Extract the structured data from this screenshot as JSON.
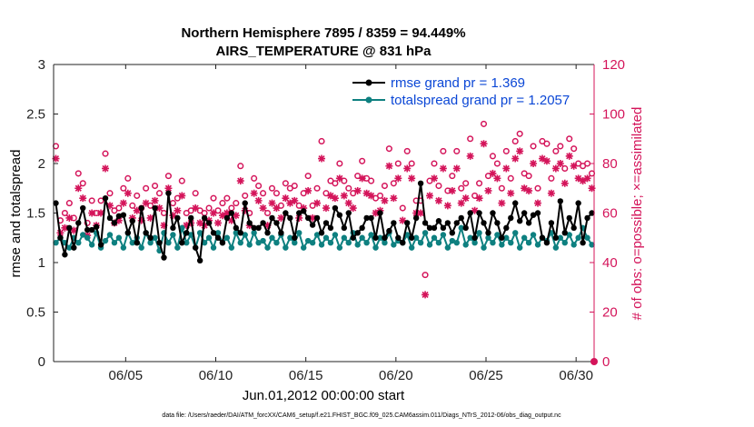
{
  "chart_data": {
    "type": "line",
    "title": "Northern Hemisphere 7895 / 8359 = 94.449%",
    "subtitle": "AIRS_TEMPERATURE @ 831 hPa",
    "xlabel": "Jun.01,2012 00:00:00 start",
    "ylabel_left": "rmse and totalspread",
    "ylabel_right": "# of obs: o=possible; ×=assimilated",
    "xlim": [
      1,
      31
    ],
    "ylim_left": [
      0,
      3
    ],
    "ylim_right": [
      0,
      120
    ],
    "x_tick_values": [
      5,
      10,
      15,
      20,
      25,
      30
    ],
    "x_tick_labels": [
      "06/05",
      "06/10",
      "06/15",
      "06/20",
      "06/25",
      "06/30"
    ],
    "y_left_ticks": [
      "0",
      "0.5",
      "1",
      "1.5",
      "2",
      "2.5",
      "3"
    ],
    "y_right_ticks": [
      "0",
      "20",
      "40",
      "60",
      "80",
      "100",
      "120"
    ],
    "legend": {
      "location": "top-right",
      "entries": [
        "rmse grand pr = 1.369",
        "totalspread grand pr = 1.2057"
      ]
    },
    "colors": {
      "rmse": "#000000",
      "spread": "#0e8080",
      "obs": "#d4145a",
      "axis_right": "#d4145a",
      "legend_text": "#0b47d6"
    },
    "x": [
      1.125,
      1.375,
      1.625,
      1.875,
      2.125,
      2.375,
      2.625,
      2.875,
      3.125,
      3.375,
      3.625,
      3.875,
      4.125,
      4.375,
      4.625,
      4.875,
      5.125,
      5.375,
      5.625,
      5.875,
      6.125,
      6.375,
      6.625,
      6.875,
      7.125,
      7.375,
      7.625,
      7.875,
      8.125,
      8.375,
      8.625,
      8.875,
      9.125,
      9.375,
      9.625,
      9.875,
      10.125,
      10.375,
      10.625,
      10.875,
      11.125,
      11.375,
      11.625,
      11.875,
      12.125,
      12.375,
      12.625,
      12.875,
      13.125,
      13.375,
      13.625,
      13.875,
      14.125,
      14.375,
      14.625,
      14.875,
      15.125,
      15.375,
      15.625,
      15.875,
      16.125,
      16.375,
      16.625,
      16.875,
      17.125,
      17.375,
      17.625,
      17.875,
      18.125,
      18.375,
      18.625,
      18.875,
      19.125,
      19.375,
      19.625,
      19.875,
      20.125,
      20.375,
      20.625,
      20.875,
      21.125,
      21.375,
      21.625,
      21.875,
      22.125,
      22.375,
      22.625,
      22.875,
      23.125,
      23.375,
      23.625,
      23.875,
      24.125,
      24.375,
      24.625,
      24.875,
      25.125,
      25.375,
      25.625,
      25.875,
      26.125,
      26.375,
      26.625,
      26.875,
      27.125,
      27.375,
      27.625,
      27.875,
      28.125,
      28.375,
      28.625,
      28.875,
      29.125,
      29.375,
      29.625,
      29.875,
      30.125,
      30.375,
      30.625,
      30.875
    ],
    "series": [
      {
        "name": "rmse",
        "axis": "left",
        "values": [
          1.6,
          1.25,
          1.08,
          1.35,
          1.15,
          1.4,
          1.55,
          1.33,
          1.33,
          1.36,
          1.18,
          1.65,
          1.45,
          1.4,
          1.47,
          1.48,
          1.3,
          1.42,
          1.2,
          1.55,
          1.3,
          1.25,
          1.55,
          1.2,
          1.05,
          1.7,
          1.35,
          1.45,
          1.2,
          1.3,
          1.45,
          1.15,
          1.02,
          1.45,
          1.4,
          1.3,
          1.25,
          1.2,
          1.45,
          1.5,
          1.35,
          1.3,
          1.6,
          1.4,
          1.35,
          1.35,
          1.4,
          1.3,
          1.45,
          1.4,
          1.3,
          1.5,
          1.45,
          1.25,
          1.5,
          1.52,
          1.45,
          1.38,
          1.45,
          1.3,
          1.4,
          1.35,
          1.55,
          1.48,
          1.35,
          1.5,
          1.25,
          1.3,
          1.35,
          1.45,
          1.45,
          1.25,
          1.5,
          1.25,
          1.32,
          1.4,
          1.25,
          1.2,
          1.4,
          1.25,
          1.45,
          1.8,
          1.4,
          1.35,
          1.35,
          1.42,
          1.35,
          1.4,
          1.3,
          1.4,
          1.45,
          1.35,
          1.5,
          1.25,
          1.5,
          1.4,
          1.3,
          1.5,
          1.4,
          1.25,
          1.35,
          1.45,
          1.6,
          1.42,
          1.5,
          1.4,
          1.48,
          1.5,
          1.25,
          1.2,
          1.4,
          1.25,
          1.62,
          1.3,
          1.45,
          1.35,
          1.6,
          1.2,
          1.45,
          1.5
        ]
      },
      {
        "name": "totalspread",
        "axis": "left",
        "values": [
          1.2,
          1.25,
          1.2,
          1.15,
          1.25,
          1.2,
          1.28,
          1.25,
          1.18,
          1.3,
          1.15,
          1.22,
          1.28,
          1.2,
          1.25,
          1.15,
          1.3,
          1.2,
          1.25,
          1.15,
          1.3,
          1.2,
          1.25,
          1.12,
          1.3,
          1.2,
          1.28,
          1.15,
          1.35,
          1.2,
          1.28,
          1.15,
          1.3,
          1.2,
          1.25,
          1.15,
          1.3,
          1.2,
          1.25,
          1.15,
          1.3,
          1.2,
          1.28,
          1.18,
          1.3,
          1.2,
          1.22,
          1.15,
          1.25,
          1.2,
          1.28,
          1.15,
          1.25,
          1.2,
          1.3,
          1.15,
          1.22,
          1.2,
          1.28,
          1.18,
          1.25,
          1.2,
          1.28,
          1.15,
          1.25,
          1.2,
          1.3,
          1.18,
          1.25,
          1.2,
          1.28,
          1.15,
          1.25,
          1.2,
          1.3,
          1.18,
          1.22,
          1.2,
          1.28,
          1.15,
          1.25,
          1.2,
          1.3,
          1.18,
          1.25,
          1.2,
          1.28,
          1.15,
          1.22,
          1.2,
          1.35,
          1.18,
          1.25,
          1.2,
          1.3,
          1.15,
          1.25,
          1.2,
          1.28,
          1.18,
          1.25,
          1.2,
          1.3,
          1.15,
          1.25,
          1.2,
          1.28,
          1.18,
          1.25,
          1.22,
          1.3,
          1.15,
          1.25,
          1.2,
          1.28,
          1.18,
          1.25,
          1.35,
          1.25,
          1.18
        ]
      },
      {
        "name": "obs possible",
        "axis": "right",
        "marker": "o",
        "values": [
          87,
          57,
          60,
          64,
          58,
          76,
          72,
          56,
          65,
          60,
          65,
          84,
          68,
          61,
          62,
          70,
          74,
          63,
          67,
          62,
          70,
          63,
          71,
          68,
          60,
          75,
          64,
          66,
          73,
          60,
          61,
          68,
          61,
          60,
          62,
          66,
          61,
          64,
          66,
          62,
          64,
          79,
          67,
          60,
          74,
          71,
          68,
          60,
          70,
          68,
          63,
          72,
          70,
          71,
          63,
          68,
          75,
          63,
          70,
          89,
          68,
          73,
          72,
          80,
          73,
          70,
          68,
          75,
          81,
          74,
          73,
          66,
          67,
          71,
          86,
          72,
          80,
          62,
          85,
          80,
          65,
          65,
          35,
          73,
          80,
          71,
          85,
          69,
          75,
          85,
          70,
          72,
          90,
          67,
          72,
          96,
          75,
          83,
          80,
          70,
          85,
          74,
          89,
          92,
          76,
          75,
          87,
          70,
          89,
          88,
          74,
          85,
          87,
          78,
          90,
          86,
          80,
          79,
          80,
          76
        ]
      },
      {
        "name": "obs assimilated",
        "axis": "right",
        "marker": "*",
        "values": [
          82,
          52,
          54,
          58,
          53,
          70,
          66,
          51,
          60,
          55,
          60,
          78,
          63,
          56,
          57,
          64,
          68,
          58,
          61,
          57,
          64,
          58,
          65,
          62,
          55,
          70,
          59,
          61,
          67,
          55,
          56,
          62,
          56,
          55,
          57,
          60,
          56,
          59,
          60,
          57,
          59,
          73,
          61,
          55,
          68,
          65,
          62,
          55,
          64,
          62,
          58,
          66,
          64,
          65,
          58,
          62,
          69,
          58,
          64,
          82,
          62,
          67,
          66,
          74,
          67,
          64,
          62,
          69,
          74,
          68,
          67,
          60,
          61,
          65,
          79,
          66,
          74,
          57,
          78,
          74,
          60,
          60,
          27,
          67,
          74,
          65,
          78,
          63,
          69,
          78,
          64,
          66,
          83,
          61,
          66,
          88,
          69,
          76,
          74,
          64,
          78,
          68,
          82,
          85,
          70,
          69,
          80,
          64,
          82,
          81,
          68,
          78,
          80,
          72,
          83,
          79,
          74,
          73,
          74,
          70
        ]
      }
    ]
  },
  "footnote": "data file: /Users/raeder/DAI/ATM_forcXX/CAM6_setup/f.e21.FHIST_BGC.f09_025.CAM6assim.011/Diags_NTrS_2012-06/obs_diag_output.nc"
}
